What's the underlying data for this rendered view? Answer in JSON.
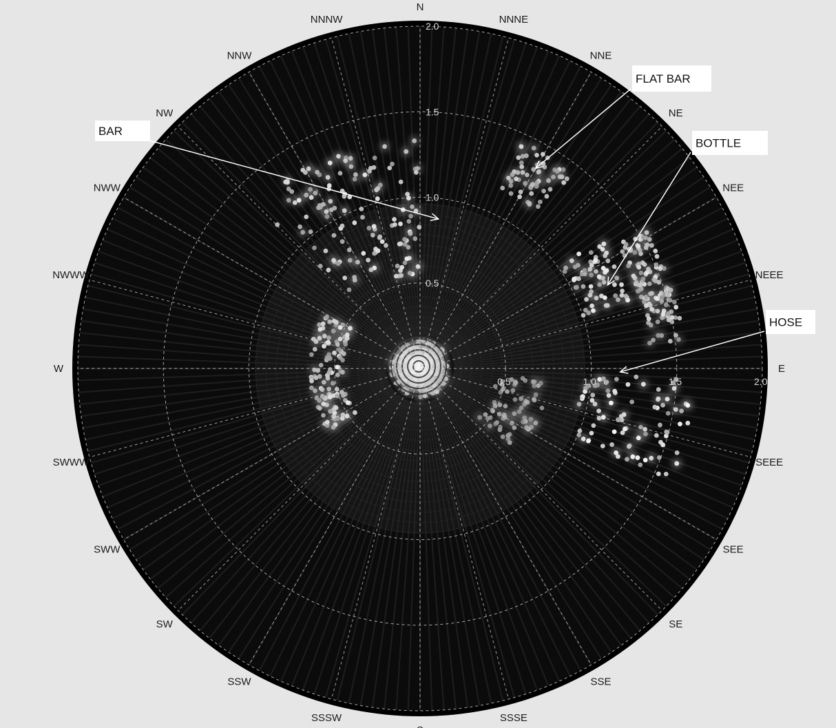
{
  "chart_data": {
    "type": "polar-scatter",
    "r_range": [
      0,
      2.0
    ],
    "r_ticks": [
      0.5,
      1.0,
      1.5,
      2.0
    ],
    "r_tick_labels": [
      "0.5",
      "1.0",
      "1.5",
      "2.0"
    ],
    "center_label": "1.5",
    "angle_labels": [
      "E",
      "NEEE",
      "NEE",
      "NE",
      "NNE",
      "NNNE",
      "N",
      "NNNW",
      "NNW",
      "NW",
      "NWW",
      "NWWW",
      "W",
      "SWWW",
      "SWW",
      "SW",
      "SSW",
      "SSSW",
      "S",
      "SSSE",
      "SSE",
      "SE",
      "SEE",
      "SEEE"
    ],
    "angle_step_deg": 15,
    "grid": true,
    "colors": {
      "background": "#e6e6e6",
      "plot": "#0b0b0b",
      "grid": "#cfcfcf",
      "echo": "#f2f2f2",
      "annotation_box": "#ffffff"
    },
    "annotations": [
      {
        "label": "BAR",
        "target_r": 0.88,
        "target_theta_deg": 83
      },
      {
        "label": "FLAT BAR",
        "target_r": 1.35,
        "target_theta_deg": 60
      },
      {
        "label": "BOTTLE",
        "target_r": 1.2,
        "target_theta_deg": 24
      },
      {
        "label": "HOSE",
        "target_r": 1.17,
        "target_theta_deg": -1
      }
    ],
    "echo_clusters": [
      {
        "r": [
          0.55,
          1.35
        ],
        "theta_deg": [
          90,
          135
        ],
        "intensity": 0.85
      },
      {
        "r": [
          1.15,
          1.45
        ],
        "theta_deg": [
          52,
          66
        ],
        "intensity": 0.75
      },
      {
        "r": [
          1.0,
          1.3
        ],
        "theta_deg": [
          18,
          36
        ],
        "intensity": 0.9
      },
      {
        "r": [
          1.35,
          1.55
        ],
        "theta_deg": [
          6,
          32
        ],
        "intensity": 0.8
      },
      {
        "r": [
          0.95,
          1.6
        ],
        "theta_deg": [
          -24,
          -2
        ],
        "intensity": 0.95
      },
      {
        "r": [
          0.45,
          0.75
        ],
        "theta_deg": [
          -40,
          -5
        ],
        "intensity": 0.45
      },
      {
        "r": [
          0.45,
          0.65
        ],
        "theta_deg": [
          150,
          215
        ],
        "intensity": 0.85
      },
      {
        "r": [
          0.0,
          0.17
        ],
        "theta_deg": [
          0,
          360
        ],
        "intensity": 0.75
      }
    ]
  }
}
